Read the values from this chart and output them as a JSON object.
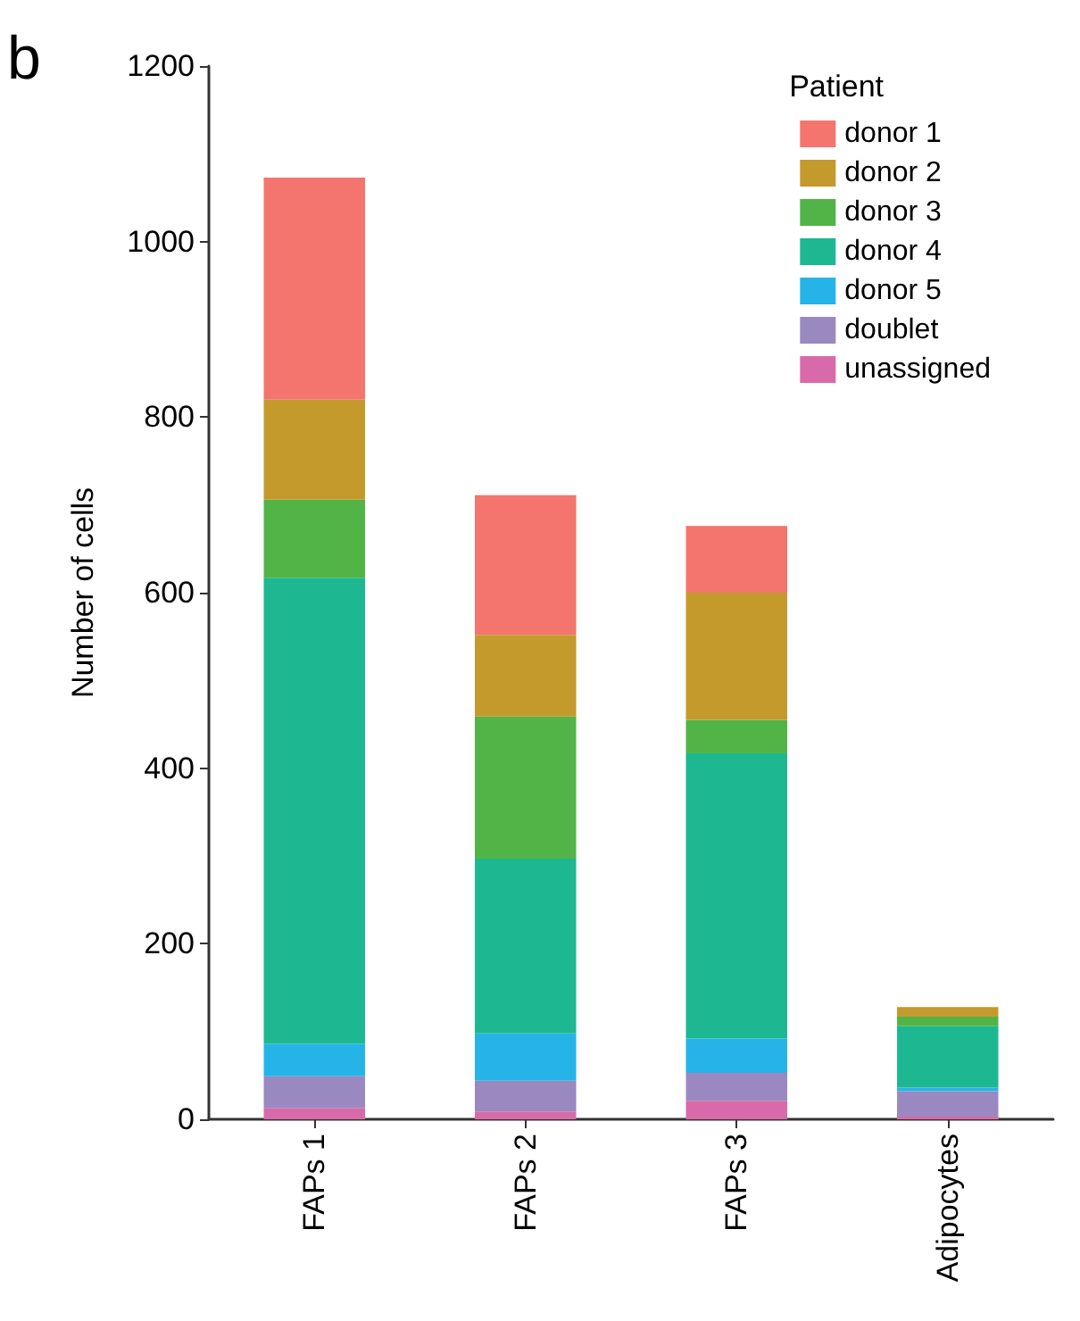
{
  "chart_data": {
    "type": "bar",
    "stacked": true,
    "ylabel": "Number of cells",
    "legend_title": "Patient",
    "legend": "top right",
    "grid": false,
    "annotations": [
      "b"
    ],
    "categories": [
      "FAPs 1",
      "FAPs 2",
      "FAPs 3",
      "Adipocytes"
    ],
    "ylim": [
      0,
      1200
    ],
    "yticks": [
      0,
      200,
      400,
      600,
      800,
      1000,
      1200
    ],
    "series": [
      {
        "name": "unassigned",
        "color": "#d96aa9",
        "values": [
          13,
          9,
          21,
          3
        ]
      },
      {
        "name": "doublet",
        "color": "#9a89c0",
        "values": [
          36,
          35,
          32,
          29
        ]
      },
      {
        "name": "donor 5",
        "color": "#26b4e8",
        "values": [
          37,
          54,
          39,
          4
        ]
      },
      {
        "name": "donor 4",
        "color": "#1db891",
        "values": [
          531,
          199,
          325,
          70
        ]
      },
      {
        "name": "donor 3",
        "color": "#52b447",
        "values": [
          89,
          162,
          38,
          11
        ]
      },
      {
        "name": "donor 2",
        "color": "#c49a2c",
        "values": [
          114,
          93,
          145,
          11
        ]
      },
      {
        "name": "donor 1",
        "color": "#f3756d",
        "values": [
          253,
          159,
          76,
          0
        ]
      }
    ]
  }
}
